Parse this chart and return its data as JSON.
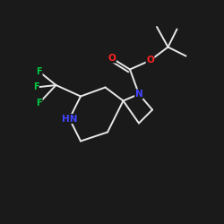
{
  "bg_color": "#1a1a1a",
  "bond_color": "#e8e8e8",
  "N_color": "#4444ff",
  "O_color": "#ff2222",
  "F_color": "#00cc44",
  "bond_width": 1.4,
  "font_size": 7.5,
  "figsize": [
    2.5,
    2.5
  ],
  "dpi": 100,
  "xlim": [
    0,
    10
  ],
  "ylim": [
    0,
    10
  ]
}
